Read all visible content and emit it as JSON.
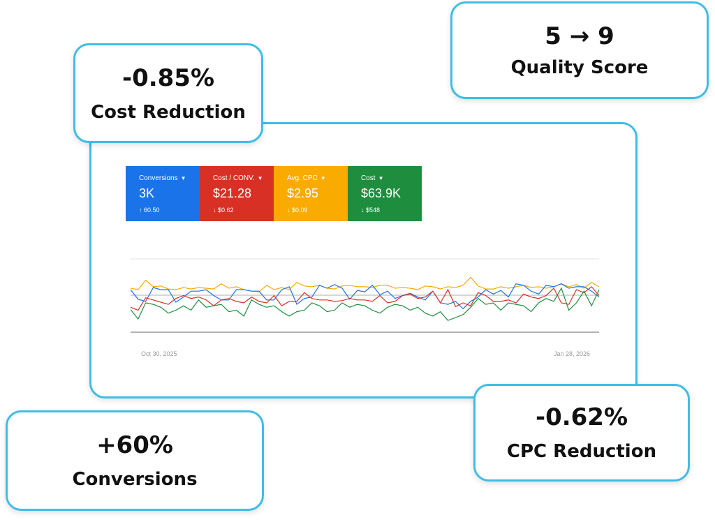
{
  "stats": [
    {
      "value": "-0.85%",
      "label": "Cost Reduction"
    },
    {
      "value": "5 → 9",
      "label": "Quality Score"
    },
    {
      "value": "+60%",
      "label": "Conversions"
    },
    {
      "value": "-0.62%",
      "label": "CPC Reduction"
    }
  ],
  "tiles": [
    {
      "title": "Conversions",
      "value": "3K",
      "delta_icon": "🠕",
      "delta": "60.50",
      "color": "#1a73e8"
    },
    {
      "title": "Cost / CONV.",
      "value": "$21.28",
      "delta_icon": "🠗",
      "delta": "$0.62",
      "color": "#d93025"
    },
    {
      "title": "Avg. CPC",
      "value": "$2.95",
      "delta_icon": "🠗",
      "delta": "$0.09",
      "color": "#f9ab00"
    },
    {
      "title": "Cost",
      "value": "$63.9K",
      "delta_icon": "🠗",
      "delta": "$548",
      "color": "#1e8e3e"
    }
  ],
  "chart_data": {
    "type": "line",
    "x_start_label": "Oct 30, 2025",
    "x_end_label": "Jan 28, 2026",
    "ylim": [
      0,
      100
    ],
    "series": [
      {
        "name": "Avg. CPC",
        "color": "#f9ab00",
        "values": [
          60,
          58,
          71,
          62,
          63,
          59,
          58,
          61,
          59,
          61,
          60,
          59,
          66,
          60,
          62,
          58,
          56,
          55,
          64,
          58,
          61,
          58,
          68,
          63,
          62,
          64,
          60,
          59,
          63,
          64,
          62,
          62,
          61,
          64,
          64,
          60,
          61,
          60,
          58,
          63,
          62,
          59,
          62,
          61,
          64,
          75,
          63,
          59,
          59,
          62,
          60,
          62,
          64,
          61,
          62,
          60,
          62,
          66,
          62,
          65,
          60,
          68,
          62
        ]
      },
      {
        "name": "Conversions",
        "color": "#1a73e8",
        "values": [
          58,
          45,
          42,
          61,
          58,
          58,
          41,
          48,
          56,
          56,
          58,
          50,
          44,
          44,
          58,
          58,
          56,
          56,
          44,
          44,
          58,
          62,
          38,
          46,
          48,
          64,
          60,
          65,
          60,
          45,
          57,
          55,
          64,
          51,
          56,
          46,
          50,
          53,
          48,
          44,
          56,
          40,
          38,
          42,
          32,
          42,
          48,
          58,
          52,
          57,
          48,
          66,
          64,
          56,
          52,
          64,
          62,
          66,
          60,
          62,
          62,
          56,
          48
        ]
      },
      {
        "name": "Cost / CONV.",
        "color": "#d93025",
        "values": [
          34,
          30,
          47,
          44,
          41,
          38,
          46,
          50,
          46,
          48,
          44,
          36,
          44,
          46,
          42,
          40,
          48,
          42,
          40,
          50,
          36,
          42,
          42,
          54,
          46,
          44,
          44,
          42,
          43,
          46,
          44,
          44,
          42,
          50,
          40,
          42,
          50,
          52,
          46,
          48,
          56,
          40,
          58,
          35,
          40,
          36,
          54,
          50,
          42,
          42,
          44,
          40,
          52,
          48,
          46,
          50,
          60,
          40,
          38,
          58,
          54,
          62,
          50
        ]
      },
      {
        "name": "Cost",
        "color": "#1e8e3e",
        "values": [
          31,
          18,
          40,
          38,
          34,
          26,
          30,
          36,
          30,
          44,
          34,
          36,
          38,
          28,
          30,
          22,
          44,
          38,
          34,
          36,
          28,
          22,
          28,
          30,
          40,
          36,
          28,
          30,
          40,
          34,
          38,
          36,
          30,
          26,
          34,
          38,
          36,
          30,
          34,
          26,
          22,
          28,
          16,
          20,
          24,
          34,
          46,
          38,
          40,
          30,
          40,
          38,
          36,
          28,
          40,
          46,
          42,
          60,
          30,
          40,
          56,
          36,
          58
        ]
      }
    ]
  }
}
